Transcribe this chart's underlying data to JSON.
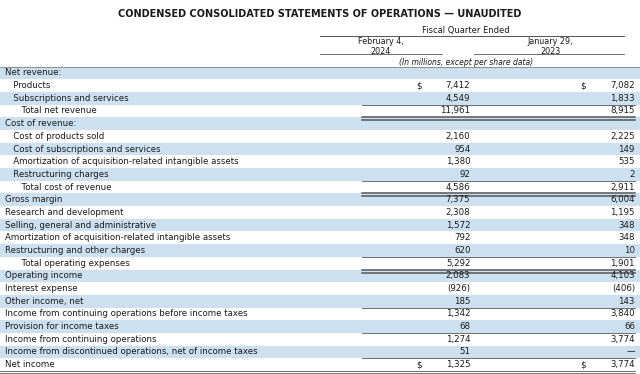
{
  "title": "CONDENSED CONSOLIDATED STATEMENTS OF OPERATIONS — UNAUDITED",
  "col_header1": "Fiscal Quarter Ended",
  "col1_label": "February 4,\n2024",
  "col2_label": "January 29,\n2023",
  "units_note": "(In millions, except per share data)",
  "rows": [
    {
      "label": "Net revenue:",
      "val1": "",
      "val2": "",
      "indent": 0,
      "bold": false,
      "bg": "#cce0f0",
      "section_header": true
    },
    {
      "label": "   Products",
      "val1": "$ 7,412",
      "val2": "$ 7,082",
      "indent": 0,
      "bold": false,
      "bg": "white",
      "dollar1": true,
      "dollar2": true
    },
    {
      "label": "   Subscriptions and services",
      "val1": "4,549",
      "val2": "1,833",
      "indent": 0,
      "bold": false,
      "bg": "#cce0f0"
    },
    {
      "label": "      Total net revenue",
      "val1": "11,961",
      "val2": "8,915",
      "indent": 0,
      "bold": false,
      "bg": "white",
      "line_above": true,
      "line_below": true
    },
    {
      "label": "Cost of revenue:",
      "val1": "",
      "val2": "",
      "indent": 0,
      "bold": false,
      "bg": "#cce0f0",
      "section_header": true
    },
    {
      "label": "   Cost of products sold",
      "val1": "2,160",
      "val2": "2,225",
      "indent": 0,
      "bold": false,
      "bg": "white"
    },
    {
      "label": "   Cost of subscriptions and services",
      "val1": "954",
      "val2": "149",
      "indent": 0,
      "bold": false,
      "bg": "#cce0f0"
    },
    {
      "label": "   Amortization of acquisition-related intangible assets",
      "val1": "1,380",
      "val2": "535",
      "indent": 0,
      "bold": false,
      "bg": "white"
    },
    {
      "label": "   Restructuring charges",
      "val1": "92",
      "val2": "2",
      "indent": 0,
      "bold": false,
      "bg": "#cce0f0"
    },
    {
      "label": "      Total cost of revenue",
      "val1": "4,586",
      "val2": "2,911",
      "indent": 0,
      "bold": false,
      "bg": "white",
      "line_above": true,
      "line_below": true
    },
    {
      "label": "Gross margin",
      "val1": "7,375",
      "val2": "6,004",
      "indent": 0,
      "bold": false,
      "bg": "#cce0f0"
    },
    {
      "label": "Research and development",
      "val1": "2,308",
      "val2": "1,195",
      "indent": 0,
      "bold": false,
      "bg": "white"
    },
    {
      "label": "Selling, general and administrative",
      "val1": "1,572",
      "val2": "348",
      "indent": 0,
      "bold": false,
      "bg": "#cce0f0"
    },
    {
      "label": "Amortization of acquisition-related intangible assets",
      "val1": "792",
      "val2": "348",
      "indent": 0,
      "bold": false,
      "bg": "white"
    },
    {
      "label": "Restructuring and other charges",
      "val1": "620",
      "val2": "10",
      "indent": 0,
      "bold": false,
      "bg": "#cce0f0"
    },
    {
      "label": "      Total operating expenses",
      "val1": "5,292",
      "val2": "1,901",
      "indent": 0,
      "bold": false,
      "bg": "white",
      "line_above": true,
      "line_below": true
    },
    {
      "label": "Operating income",
      "val1": "2,083",
      "val2": "4,103",
      "indent": 0,
      "bold": false,
      "bg": "#cce0f0"
    },
    {
      "label": "Interest expense",
      "val1": "(926)",
      "val2": "(406)",
      "indent": 0,
      "bold": false,
      "bg": "white"
    },
    {
      "label": "Other income, net",
      "val1": "185",
      "val2": "143",
      "indent": 0,
      "bold": false,
      "bg": "#cce0f0",
      "line_below_thin": true
    },
    {
      "label": "Income from continuing operations before income taxes",
      "val1": "1,342",
      "val2": "3,840",
      "indent": 0,
      "bold": false,
      "bg": "white"
    },
    {
      "label": "Provision for income taxes",
      "val1": "68",
      "val2": "66",
      "indent": 0,
      "bold": false,
      "bg": "#cce0f0",
      "line_below_thin": true
    },
    {
      "label": "Income from continuing operations",
      "val1": "1,274",
      "val2": "3,774",
      "indent": 0,
      "bold": false,
      "bg": "white"
    },
    {
      "label": "Income from discontinued operations, net of income taxes",
      "val1": "51",
      "val2": "—",
      "indent": 0,
      "bold": false,
      "bg": "#cce0f0"
    },
    {
      "label": "Net income",
      "val1": "$ 1,325",
      "val2": "$ 3,774",
      "indent": 0,
      "bold": false,
      "bg": "white",
      "line_above": true,
      "line_below_double": true,
      "dollar1": true,
      "dollar2": true
    }
  ],
  "bg_color": "white",
  "text_color": "#1a1a1a",
  "line_color": "#555555",
  "title_fontsize": 7.0,
  "body_fontsize": 6.2,
  "header_fontsize": 6.2
}
